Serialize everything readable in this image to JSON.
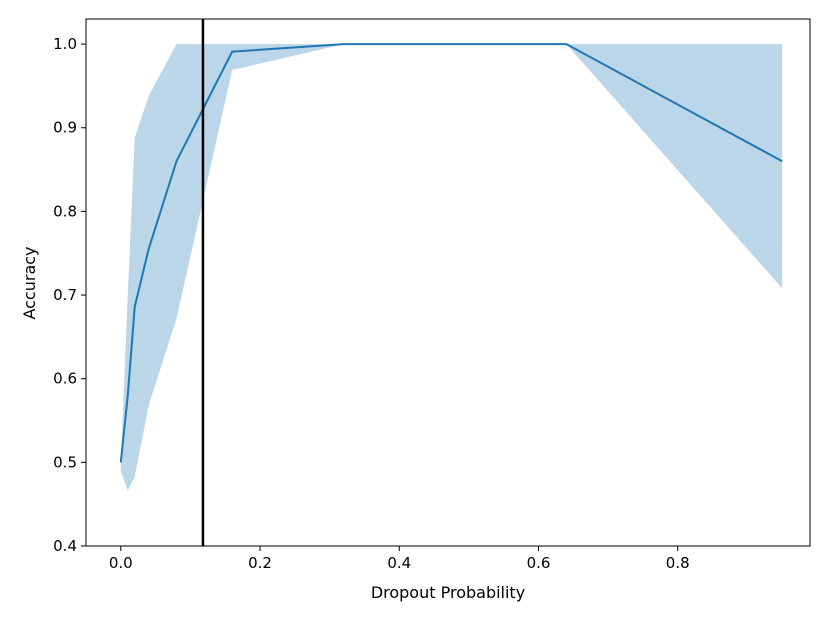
{
  "chart_data": {
    "type": "line",
    "title": "",
    "xlabel": "Dropout Probability",
    "ylabel": "Accuracy",
    "xlim": [
      -0.05,
      0.99
    ],
    "ylim": [
      0.4,
      1.03
    ],
    "xticks": [
      0.0,
      0.2,
      0.4,
      0.6,
      0.8
    ],
    "xtick_labels": [
      "0.0",
      "0.2",
      "0.4",
      "0.6",
      "0.8"
    ],
    "yticks": [
      0.4,
      0.5,
      0.6,
      0.7,
      0.8,
      0.9,
      1.0
    ],
    "ytick_labels": [
      "0.4",
      "0.5",
      "0.6",
      "0.7",
      "0.8",
      "0.9",
      "1.0"
    ],
    "grid": false,
    "series": [
      {
        "x": [
          0.0,
          0.01,
          0.02,
          0.04,
          0.08,
          0.16,
          0.32,
          0.64,
          0.95
        ],
        "y": [
          0.5,
          0.58,
          0.686,
          0.755,
          0.86,
          0.991,
          1.0,
          1.0,
          0.86
        ],
        "lower": [
          0.49,
          0.466,
          0.483,
          0.568,
          0.672,
          0.969,
          1.0,
          1.0,
          0.708
        ],
        "upper": [
          0.5,
          0.7,
          0.888,
          0.938,
          1.0,
          1.0,
          1.0,
          1.0,
          1.0
        ],
        "color": "#1f77b4",
        "band_color": "#1f77b4",
        "band_opacity": 0.3
      }
    ],
    "vlines": [
      {
        "x": 0.118,
        "color": "#000000"
      }
    ]
  }
}
